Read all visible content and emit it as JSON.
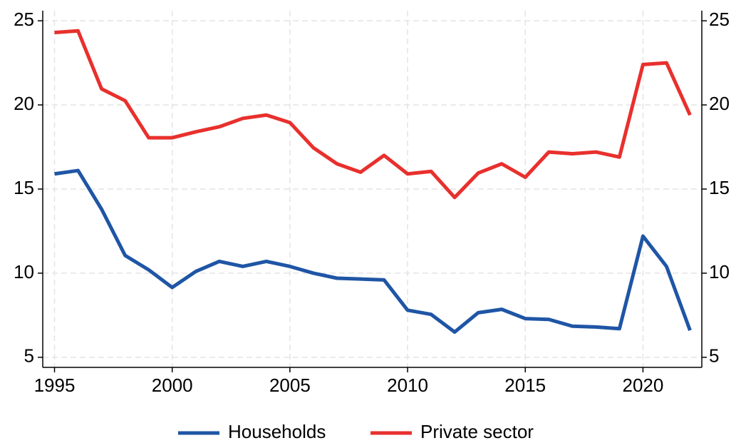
{
  "chart_data": {
    "type": "line",
    "x": [
      1995,
      1996,
      1997,
      1998,
      1999,
      2000,
      2001,
      2002,
      2003,
      2004,
      2005,
      2006,
      2007,
      2008,
      2009,
      2010,
      2011,
      2012,
      2013,
      2014,
      2015,
      2016,
      2017,
      2018,
      2019,
      2020,
      2021,
      2022
    ],
    "series": [
      {
        "name": "Households",
        "color": "#1f55a5",
        "values": [
          15.9,
          16.1,
          13.8,
          11.05,
          10.2,
          9.15,
          10.1,
          10.7,
          10.4,
          10.7,
          10.4,
          10.0,
          9.7,
          9.65,
          9.6,
          7.8,
          7.55,
          6.5,
          7.65,
          7.85,
          7.3,
          7.25,
          6.85,
          6.8,
          6.7,
          12.2,
          10.4,
          6.6
        ]
      },
      {
        "name": "Private sector",
        "color": "#e8302d",
        "values": [
          24.3,
          24.4,
          20.95,
          20.25,
          18.05,
          18.05,
          18.4,
          18.7,
          19.2,
          19.4,
          18.95,
          17.45,
          16.5,
          16.0,
          17.0,
          15.9,
          16.05,
          14.5,
          15.95,
          16.5,
          15.7,
          17.2,
          17.1,
          17.2,
          16.9,
          22.4,
          22.5,
          19.4
        ]
      }
    ],
    "xlim": [
      1994.5,
      2022.5
    ],
    "xticks": [
      1995,
      2000,
      2005,
      2010,
      2015,
      2020
    ],
    "ylim": [
      4.4,
      25.6
    ],
    "yticks": [
      5,
      10,
      15,
      20,
      25
    ],
    "y2lim": [
      4.4,
      25.6
    ],
    "y2ticks": [
      5,
      10,
      15,
      20,
      25
    ],
    "grid": true,
    "legend": "bottom"
  }
}
